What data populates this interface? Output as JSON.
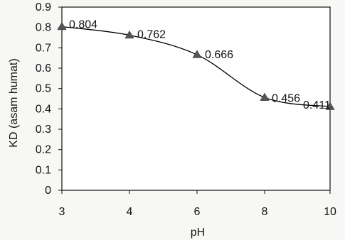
{
  "chart_data": {
    "type": "line",
    "xlabel": "pH",
    "ylabel": "KD (asam humat)",
    "x": [
      3,
      4,
      6,
      8,
      10
    ],
    "x_tick_labels": [
      "3",
      "4",
      "6",
      "8",
      "10"
    ],
    "ylim": [
      0,
      0.9
    ],
    "y_ticks": [
      0,
      0.1,
      0.2,
      0.3,
      0.4,
      0.5,
      0.6,
      0.7,
      0.8,
      0.9
    ],
    "y_tick_labels": [
      "0",
      "0.1",
      "0.2",
      "0.3",
      "0.4",
      "0.5",
      "0.6",
      "0.7",
      "0.8",
      "0.9"
    ],
    "series": [
      {
        "values": [
          0.804,
          0.762,
          0.666,
          0.456,
          0.411
        ],
        "data_labels": [
          "0.804",
          "0.762",
          "0.666",
          "0.456",
          "0.411"
        ],
        "marker": "triangle",
        "smooth": true
      }
    ],
    "grid": false,
    "line_color": "#000000",
    "marker_color": "#555555"
  }
}
